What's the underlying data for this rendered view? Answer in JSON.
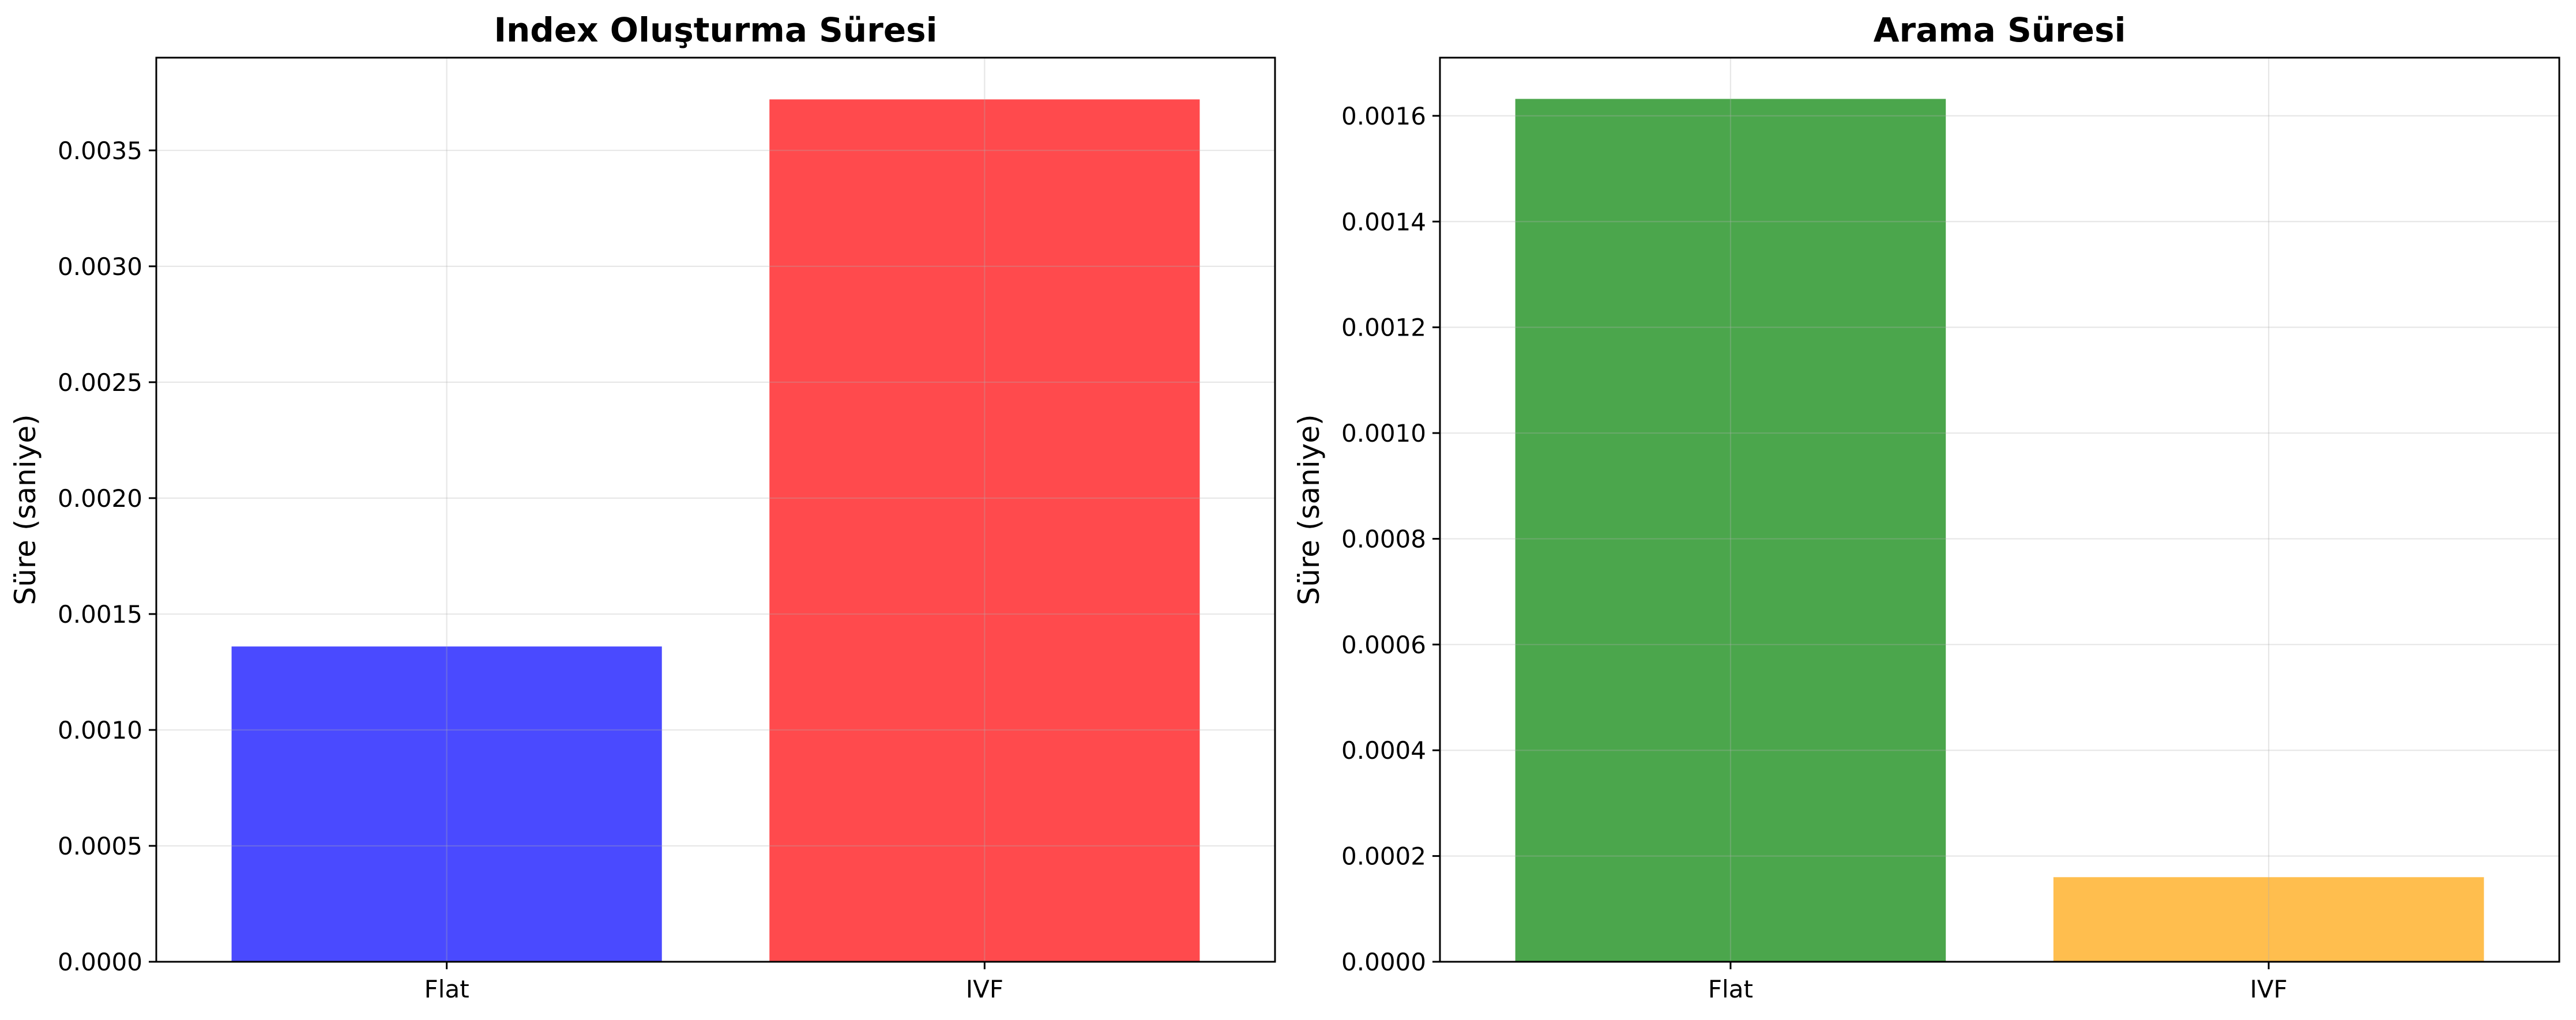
{
  "chart_data": [
    {
      "type": "bar",
      "title": "Index Oluşturma Süresi",
      "xlabel": "",
      "ylabel": "Süre (saniye)",
      "categories": [
        "Flat",
        "IVF"
      ],
      "values": [
        0.00136,
        0.00372
      ],
      "colors": [
        "#4a4aff",
        "#ff4a4d"
      ],
      "ylim": [
        0,
        0.0039
      ],
      "yticks": [
        0,
        0.0005,
        0.001,
        0.0015,
        0.002,
        0.0025,
        0.003,
        0.0035
      ],
      "ytick_labels": [
        "0.0000",
        "0.0005",
        "0.0010",
        "0.0015",
        "0.0020",
        "0.0025",
        "0.0030",
        "0.0035"
      ],
      "grid": true,
      "legend": "none"
    },
    {
      "type": "bar",
      "title": "Arama Süresi",
      "xlabel": "",
      "ylabel": "Süre (saniye)",
      "categories": [
        "Flat",
        "IVF"
      ],
      "values": [
        0.001632,
        0.00016
      ],
      "colors": [
        "#4ba64c",
        "#ffbe4e"
      ],
      "ylim": [
        0,
        0.00171
      ],
      "yticks": [
        0,
        0.0002,
        0.0004,
        0.0006,
        0.0008,
        0.001,
        0.0012,
        0.0014,
        0.0016
      ],
      "ytick_labels": [
        "0.0000",
        "0.0002",
        "0.0004",
        "0.0006",
        "0.0008",
        "0.0010",
        "0.0012",
        "0.0014",
        "0.0016"
      ],
      "grid": true,
      "legend": "none"
    }
  ]
}
